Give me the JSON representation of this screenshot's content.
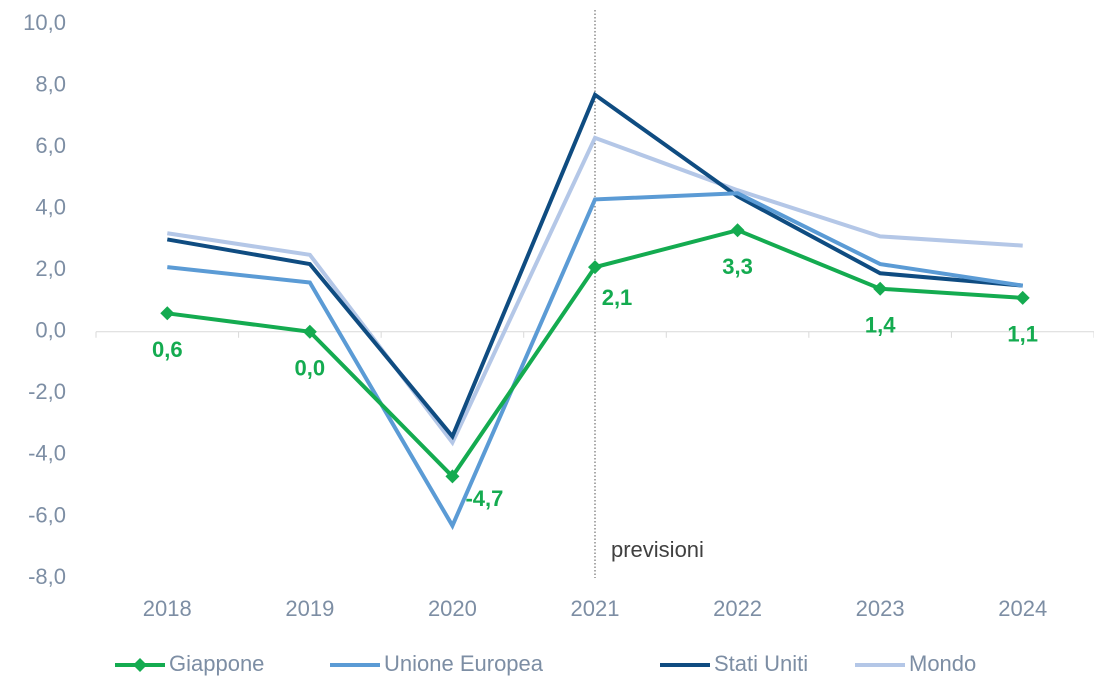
{
  "chart_data": {
    "type": "line",
    "categories": [
      "2018",
      "2019",
      "2020",
      "2021",
      "2022",
      "2023",
      "2024"
    ],
    "series": [
      {
        "name": "Giappone",
        "color": "#14ab50",
        "values": [
          0.6,
          0.0,
          -4.7,
          2.1,
          3.3,
          1.4,
          1.1
        ],
        "value_labels": [
          "0,6",
          "0,0",
          "-4,7",
          "2,1",
          "3,3",
          "1,4",
          "1,1"
        ],
        "marker": "diamond"
      },
      {
        "name": "Unione Europea",
        "color": "#5b9bd5",
        "values": [
          2.1,
          1.6,
          -6.3,
          4.3,
          4.5,
          2.2,
          1.5
        ]
      },
      {
        "name": "Stati Uniti",
        "color": "#0f4c81",
        "values": [
          3.0,
          2.2,
          -3.4,
          7.7,
          4.4,
          1.9,
          1.5
        ]
      },
      {
        "name": "Mondo",
        "color": "#b4c7e7",
        "values": [
          3.2,
          2.5,
          -3.6,
          6.3,
          4.6,
          3.1,
          2.8
        ]
      }
    ],
    "ylim": [
      -8,
      10
    ],
    "yticks": [
      {
        "value": -8,
        "label": "-8,0"
      },
      {
        "value": -6,
        "label": "-6,0"
      },
      {
        "value": -4,
        "label": "-4,0"
      },
      {
        "value": -2,
        "label": "-2,0"
      },
      {
        "value": 0,
        "label": "0,0"
      },
      {
        "value": 2,
        "label": "2,0"
      },
      {
        "value": 4,
        "label": "4,0"
      },
      {
        "value": 6,
        "label": "6,0"
      },
      {
        "value": 8,
        "label": "8,0"
      },
      {
        "value": 10,
        "label": "10,0"
      }
    ],
    "annotation": {
      "text": "previsioni",
      "category": "2021"
    },
    "grid": false,
    "legend": "bottom"
  }
}
